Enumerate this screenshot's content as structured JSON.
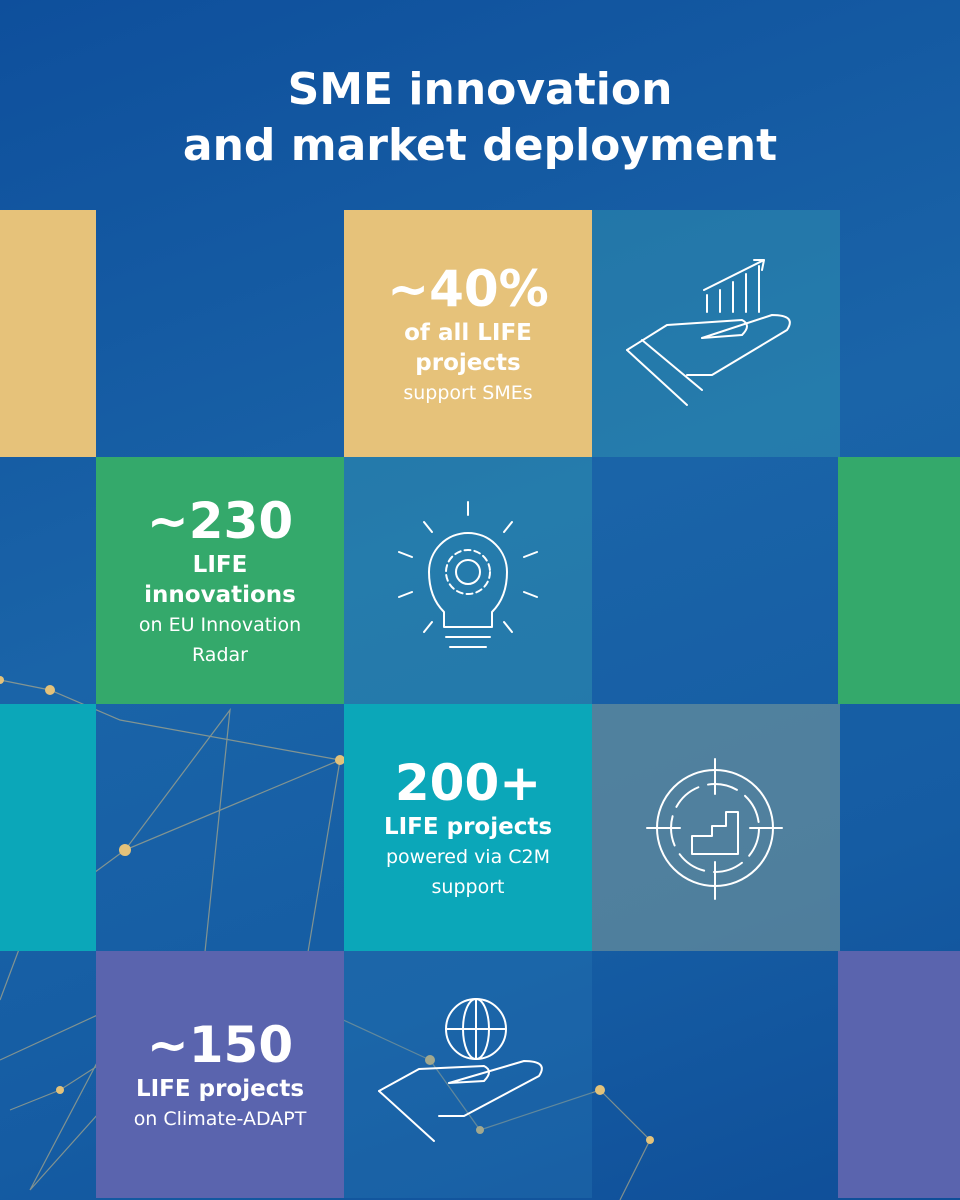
{
  "title": {
    "lines": [
      "SME innovation",
      "and market deployment"
    ]
  },
  "stats": [
    {
      "value": "~40%",
      "label": "of all LIFE projects",
      "detail": "support SMEs"
    },
    {
      "value": "~230",
      "label": "LIFE innovations",
      "detail": "on EU Innovation Radar"
    },
    {
      "value": "200+",
      "label": "LIFE projects",
      "detail": "powered via C2M support"
    },
    {
      "value": "~150",
      "label": "LIFE projects",
      "detail": "on Climate-ADAPT"
    }
  ]
}
